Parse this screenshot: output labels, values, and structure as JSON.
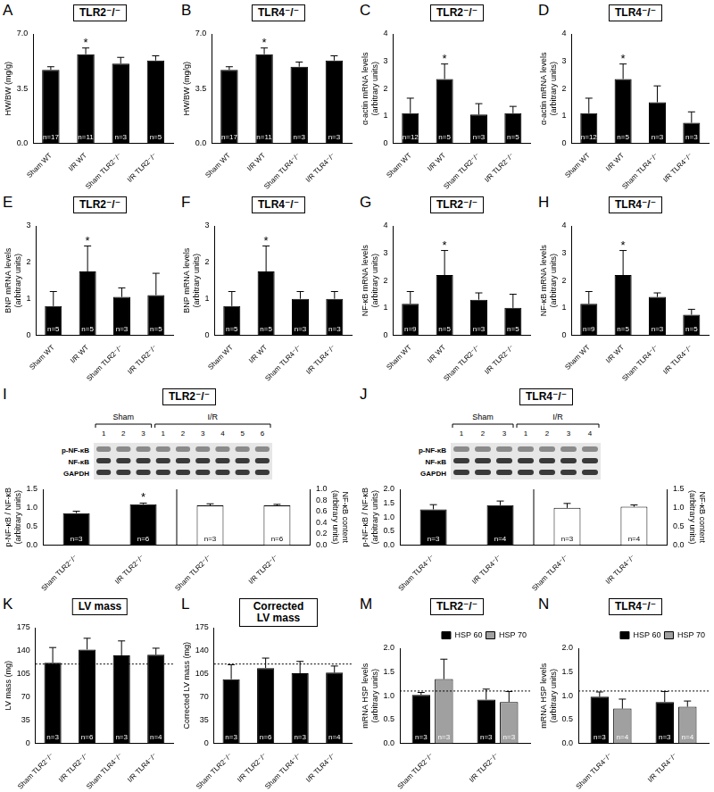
{
  "chart_data": [
    {
      "panel": "A",
      "title": "TLR2⁻/⁻",
      "type": "bar",
      "y_label": "HW/BW (mg/g)",
      "categories": [
        "Sham WT",
        "I/R WT",
        "Sham TLR2⁻/⁻",
        "I/R TLR2⁻/⁻"
      ],
      "series": [
        {
          "color": "#000000",
          "values": [
            4.7,
            5.7,
            5.1,
            5.3
          ],
          "errors": [
            0.2,
            0.4,
            0.4,
            0.3
          ],
          "n_labels": [
            "n=17",
            "n=11",
            "n=3",
            "n=5"
          ],
          "significance": [
            null,
            "*",
            null,
            null
          ]
        }
      ],
      "ylim": [
        0,
        7
      ],
      "yticks": [
        {
          "value": 0,
          "label": "0.0"
        },
        3.5,
        {
          "value": 7,
          "label": "7.0"
        }
      ],
      "grid": false
    },
    {
      "panel": "B",
      "title": "TLR4⁻/⁻",
      "type": "bar",
      "y_label": "HW/BW (mg/g)",
      "categories": [
        "Sham WT",
        "I/R WT",
        "Sham TLR4⁻/⁻",
        "I/R TLR4⁻/⁻"
      ],
      "series": [
        {
          "color": "#000000",
          "values": [
            4.7,
            5.7,
            4.9,
            5.3
          ],
          "errors": [
            0.2,
            0.4,
            0.3,
            0.3
          ],
          "n_labels": [
            "n=17",
            "n=11",
            "n=3",
            "n=3"
          ],
          "significance": [
            null,
            "*",
            null,
            null
          ]
        }
      ],
      "ylim": [
        0,
        7
      ],
      "yticks": [
        {
          "value": 0,
          "label": "0.0"
        },
        3.5,
        {
          "value": 7,
          "label": "7.0"
        }
      ],
      "grid": false
    },
    {
      "panel": "C",
      "title": "TLR2⁻/⁻",
      "type": "bar",
      "y_label": [
        "α-actin mRNA levels",
        "(arbitrary units)"
      ],
      "categories": [
        "Sham WT",
        "I/R WT",
        "Sham TLR2⁻/⁻",
        "I/R TLR2⁻/⁻"
      ],
      "series": [
        {
          "color": "#000000",
          "values": [
            1.1,
            2.35,
            1.05,
            1.1
          ],
          "errors": [
            0.55,
            0.55,
            0.4,
            0.25
          ],
          "n_labels": [
            "n=12",
            "n=5",
            "n=3",
            "n=5"
          ],
          "significance": [
            null,
            "*",
            null,
            null
          ]
        }
      ],
      "ylim": [
        0,
        4
      ],
      "yticks": [
        0,
        1,
        2,
        3,
        4
      ],
      "grid": false
    },
    {
      "panel": "D",
      "title": "TLR4⁻/⁻",
      "type": "bar",
      "y_label": [
        "α-actin mRNA levels",
        "(arbitrary units)"
      ],
      "categories": [
        "Sham WT",
        "I/R WT",
        "Sham TLR4⁻/⁻",
        "I/R TLR4⁻/⁻"
      ],
      "series": [
        {
          "color": "#000000",
          "values": [
            1.1,
            2.35,
            1.5,
            0.75
          ],
          "errors": [
            0.55,
            0.55,
            0.6,
            0.4
          ],
          "n_labels": [
            "n=12",
            "n=5",
            "n=3",
            "n=3"
          ],
          "significance": [
            null,
            "*",
            null,
            null
          ]
        }
      ],
      "ylim": [
        0,
        4
      ],
      "yticks": [
        0,
        1,
        2,
        3,
        4
      ],
      "grid": false
    },
    {
      "panel": "E",
      "title": "TLR2⁻/⁻",
      "type": "bar",
      "y_label": [
        "BNP mRNA levels",
        "(arbitrary units)"
      ],
      "categories": [
        "Sham WT",
        "I/R WT",
        "Sham TLR2⁻/⁻",
        "I/R TLR2⁻/⁻"
      ],
      "series": [
        {
          "color": "#000000",
          "values": [
            0.8,
            1.75,
            1.05,
            1.1
          ],
          "errors": [
            0.4,
            0.7,
            0.25,
            0.6
          ],
          "n_labels": [
            "n=5",
            "n=5",
            "n=3",
            "n=5"
          ],
          "significance": [
            null,
            "*",
            null,
            null
          ]
        }
      ],
      "ylim": [
        0,
        3
      ],
      "yticks": [
        0,
        1,
        2,
        3
      ],
      "grid": false
    },
    {
      "panel": "F",
      "title": "TLR4⁻/⁻",
      "type": "bar",
      "y_label": [
        "BNP mRNA levels",
        "(arbitrary units)"
      ],
      "categories": [
        "Sham WT",
        "I/R WT",
        "Sham TLR4⁻/⁻",
        "I/R TLR4⁻/⁻"
      ],
      "series": [
        {
          "color": "#000000",
          "values": [
            0.8,
            1.75,
            1.0,
            1.0
          ],
          "errors": [
            0.4,
            0.7,
            0.2,
            0.2
          ],
          "n_labels": [
            "n=5",
            "n=5",
            "n=3",
            "n=3"
          ],
          "significance": [
            null,
            "*",
            null,
            null
          ]
        }
      ],
      "ylim": [
        0,
        3
      ],
      "yticks": [
        0,
        1,
        2,
        3
      ],
      "grid": false
    },
    {
      "panel": "G",
      "title": "TLR2⁻/⁻",
      "type": "bar",
      "y_label": [
        "NF-κB mRNA levels",
        "(arbitrary units)"
      ],
      "categories": [
        "Sham WT",
        "I/R WT",
        "Sham TLR2⁻/⁻",
        "I/R TLR2⁻/⁻"
      ],
      "series": [
        {
          "color": "#000000",
          "values": [
            1.15,
            2.2,
            1.3,
            1.0
          ],
          "errors": [
            0.45,
            0.9,
            0.25,
            0.5
          ],
          "n_labels": [
            "n=9",
            "n=5",
            "n=3",
            "n=5"
          ],
          "significance": [
            null,
            "*",
            null,
            null
          ]
        }
      ],
      "ylim": [
        0,
        4
      ],
      "yticks": [
        0,
        1,
        2,
        3,
        4
      ],
      "grid": false
    },
    {
      "panel": "H",
      "title": "TLR4⁻/⁻",
      "type": "bar",
      "y_label": [
        "NF-κB mRNA levels",
        "(arbitrary units)"
      ],
      "categories": [
        "Sham WT",
        "I/R WT",
        "Sham TLR4⁻/⁻",
        "I/R TLR4⁻/⁻"
      ],
      "series": [
        {
          "color": "#000000",
          "values": [
            1.15,
            2.2,
            1.4,
            0.75
          ],
          "errors": [
            0.45,
            0.9,
            0.15,
            0.2
          ],
          "n_labels": [
            "n=9",
            "n=5",
            "n=3",
            "n=5"
          ],
          "significance": [
            null,
            "*",
            null,
            null
          ]
        }
      ],
      "ylim": [
        0,
        4
      ],
      "yticks": [
        0,
        1,
        2,
        3,
        4
      ],
      "grid": false
    },
    {
      "panel": "I",
      "title": "TLR2⁻/⁻",
      "type": "bar",
      "blot": {
        "rows": [
          "p-NF-κB",
          "NF-κB",
          "GAPDH"
        ],
        "groups": [
          {
            "label": "Sham",
            "lanes": [
              "1",
              "2",
              "3"
            ]
          },
          {
            "label": "I/R",
            "lanes": [
              "1",
              "2",
              "3",
              "4",
              "5",
              "6"
            ]
          }
        ]
      },
      "y_label": [
        "p-NF-κB / NF-κB",
        "(arbitrary units)"
      ],
      "y2_label": [
        "NF-κB content",
        "(arbitrary units)"
      ],
      "categories": [
        "Sham TLR2⁻/⁻",
        "I/R TLR2⁻/⁻",
        "Sham TLR2⁻/⁻",
        "I/R TLR2⁻/⁻"
      ],
      "series": [
        {
          "color": "#000000",
          "values": [
            0.86,
            1.1,
            null,
            null
          ],
          "errors": [
            0.05,
            0.03,
            null,
            null
          ],
          "n_labels": [
            "n=3",
            "n=6",
            null,
            null
          ],
          "significance": [
            null,
            "*",
            null,
            null
          ]
        },
        {
          "color": "#ffffff",
          "axis": "y2",
          "values": [
            null,
            null,
            0.71,
            0.71
          ],
          "errors": [
            null,
            null,
            0.03,
            0.02
          ],
          "n_labels": [
            null,
            null,
            "n=3",
            "n=6"
          ]
        }
      ],
      "ylim": [
        0,
        1.5
      ],
      "yticks": [
        {
          "value": 0,
          "label": "0.0"
        },
        0.5,
        {
          "value": 1,
          "label": "1.0"
        },
        1.5
      ],
      "y2lim": [
        0,
        1
      ],
      "y2ticks": [
        {
          "value": 0,
          "label": "0.0"
        },
        0.2,
        0.4,
        0.6,
        0.8,
        {
          "value": 1,
          "label": "1.0"
        }
      ],
      "grid": false
    },
    {
      "panel": "J",
      "title": "TLR4⁻/⁻",
      "type": "bar",
      "blot": {
        "rows": [
          "p-NF-κB",
          "NF-κB",
          "GAPDH"
        ],
        "groups": [
          {
            "label": "Sham",
            "lanes": [
              "1",
              "2",
              "3"
            ]
          },
          {
            "label": "I/R",
            "lanes": [
              "1",
              "2",
              "3",
              "4"
            ]
          }
        ]
      },
      "y_label": [
        "p-NF-κB / NF-κB",
        "(arbitrary units)"
      ],
      "y2_label": [
        "NF-κB content",
        "(arbitrary units)"
      ],
      "categories": [
        "Sham TLR4⁻/⁻",
        "I/R TLR4⁻/⁻",
        "Sham TLR4⁻/⁻",
        "I/R TLR4⁻/⁻"
      ],
      "series": [
        {
          "color": "#000000",
          "values": [
            1.28,
            1.43,
            null,
            null
          ],
          "errors": [
            0.17,
            0.15,
            null,
            null
          ],
          "n_labels": [
            "n=3",
            "n=4",
            null,
            null
          ]
        },
        {
          "color": "#ffffff",
          "axis": "y2",
          "values": [
            null,
            null,
            1.0,
            1.03
          ],
          "errors": [
            null,
            null,
            0.12,
            0.05
          ],
          "n_labels": [
            null,
            null,
            "n=3",
            "n=4"
          ]
        }
      ],
      "ylim": [
        0,
        2
      ],
      "yticks": [
        {
          "value": 0,
          "label": "0.0"
        },
        0.5,
        {
          "value": 1,
          "label": "1.0"
        },
        1.5,
        {
          "value": 2,
          "label": "2.0"
        }
      ],
      "y2lim": [
        0,
        1.5
      ],
      "y2ticks": [
        {
          "value": 0,
          "label": "0.0"
        },
        0.5,
        {
          "value": 1,
          "label": "1.0"
        },
        1.5
      ],
      "grid": false
    },
    {
      "panel": "K",
      "title": "LV mass",
      "type": "bar",
      "y_label": "LV mass (mg)",
      "categories": [
        "Sham TLR2⁻/⁻",
        "I/R TLR2⁻/⁻",
        "Sham TLR4⁻/⁻",
        "I/R TLR4⁻/⁻"
      ],
      "series": [
        {
          "color": "#000000",
          "values": [
            122,
            142,
            133,
            134
          ],
          "errors": [
            23,
            17,
            22,
            10
          ],
          "n_labels": [
            "n=3",
            "n=6",
            "n=3",
            "n=4"
          ]
        }
      ],
      "reference_line": 120,
      "ylim": [
        0,
        175
      ],
      "yticks": [
        0,
        35,
        70,
        105,
        140,
        175
      ],
      "grid": false
    },
    {
      "panel": "L",
      "title": "Corrected LV mass",
      "type": "bar",
      "y_label": "Corrected LV mass (mg)",
      "categories": [
        "Sham TLR2⁻/⁻",
        "I/R TLR2⁻/⁻",
        "Sham TLR4⁻/⁻",
        "I/R TLR4⁻/⁻"
      ],
      "series": [
        {
          "color": "#000000",
          "values": [
            97,
            114,
            106,
            107
          ],
          "errors": [
            22,
            15,
            18,
            10
          ],
          "n_labels": [
            "n=3",
            "n=6",
            "n=3",
            "n=4"
          ]
        }
      ],
      "reference_line": 120,
      "ylim": [
        0,
        175
      ],
      "yticks": [
        0,
        35,
        70,
        105,
        140,
        175
      ],
      "grid": false
    },
    {
      "panel": "M",
      "title": "TLR2⁻/⁻",
      "type": "bar",
      "y_label": [
        "mRNA HSP levels",
        "(arbitrary units)"
      ],
      "categories": [
        "Sham TLR2⁻/⁻",
        "I/R TLR2⁻/⁻"
      ],
      "series": [
        {
          "name": "HSP 60",
          "color": "#000000",
          "values": [
            1.02,
            0.92
          ],
          "errors": [
            0.05,
            0.22
          ],
          "n_labels": [
            "n=3",
            "n=3"
          ]
        },
        {
          "name": "HSP 70",
          "color": "#a0a0a0",
          "values": [
            1.35,
            0.87
          ],
          "errors": [
            0.42,
            0.22
          ],
          "n_labels": [
            "n=3",
            "n=3"
          ]
        }
      ],
      "reference_line": 1.1,
      "legend": "top-right",
      "ylim": [
        0,
        2
      ],
      "yticks": [
        {
          "value": 0,
          "label": "0.0"
        },
        0.5,
        {
          "value": 1,
          "label": "1.0"
        },
        1.5,
        {
          "value": 2,
          "label": "2.0"
        }
      ],
      "grid": false
    },
    {
      "panel": "N",
      "title": "TLR4⁻/⁻",
      "type": "bar",
      "y_label": [
        "mRNA HSP levels",
        "(arbitrary units)"
      ],
      "categories": [
        "Sham TLR4⁻/⁻",
        "I/R TLR4⁻/⁻"
      ],
      "series": [
        {
          "name": "HSP 60",
          "color": "#000000",
          "values": [
            0.98,
            0.87
          ],
          "errors": [
            0.1,
            0.22
          ],
          "n_labels": [
            "n=3",
            "n=3"
          ]
        },
        {
          "name": "HSP 70",
          "color": "#a0a0a0",
          "values": [
            0.73,
            0.77
          ],
          "errors": [
            0.2,
            0.12
          ],
          "n_labels": [
            "n=4",
            "n=4"
          ]
        }
      ],
      "reference_line": 1.1,
      "legend": "top-right",
      "ylim": [
        0,
        2
      ],
      "yticks": [
        {
          "value": 0,
          "label": "0.0"
        },
        0.5,
        {
          "value": 1,
          "label": "1.0"
        },
        1.5,
        {
          "value": 2,
          "label": "2.0"
        }
      ],
      "grid": false
    }
  ]
}
